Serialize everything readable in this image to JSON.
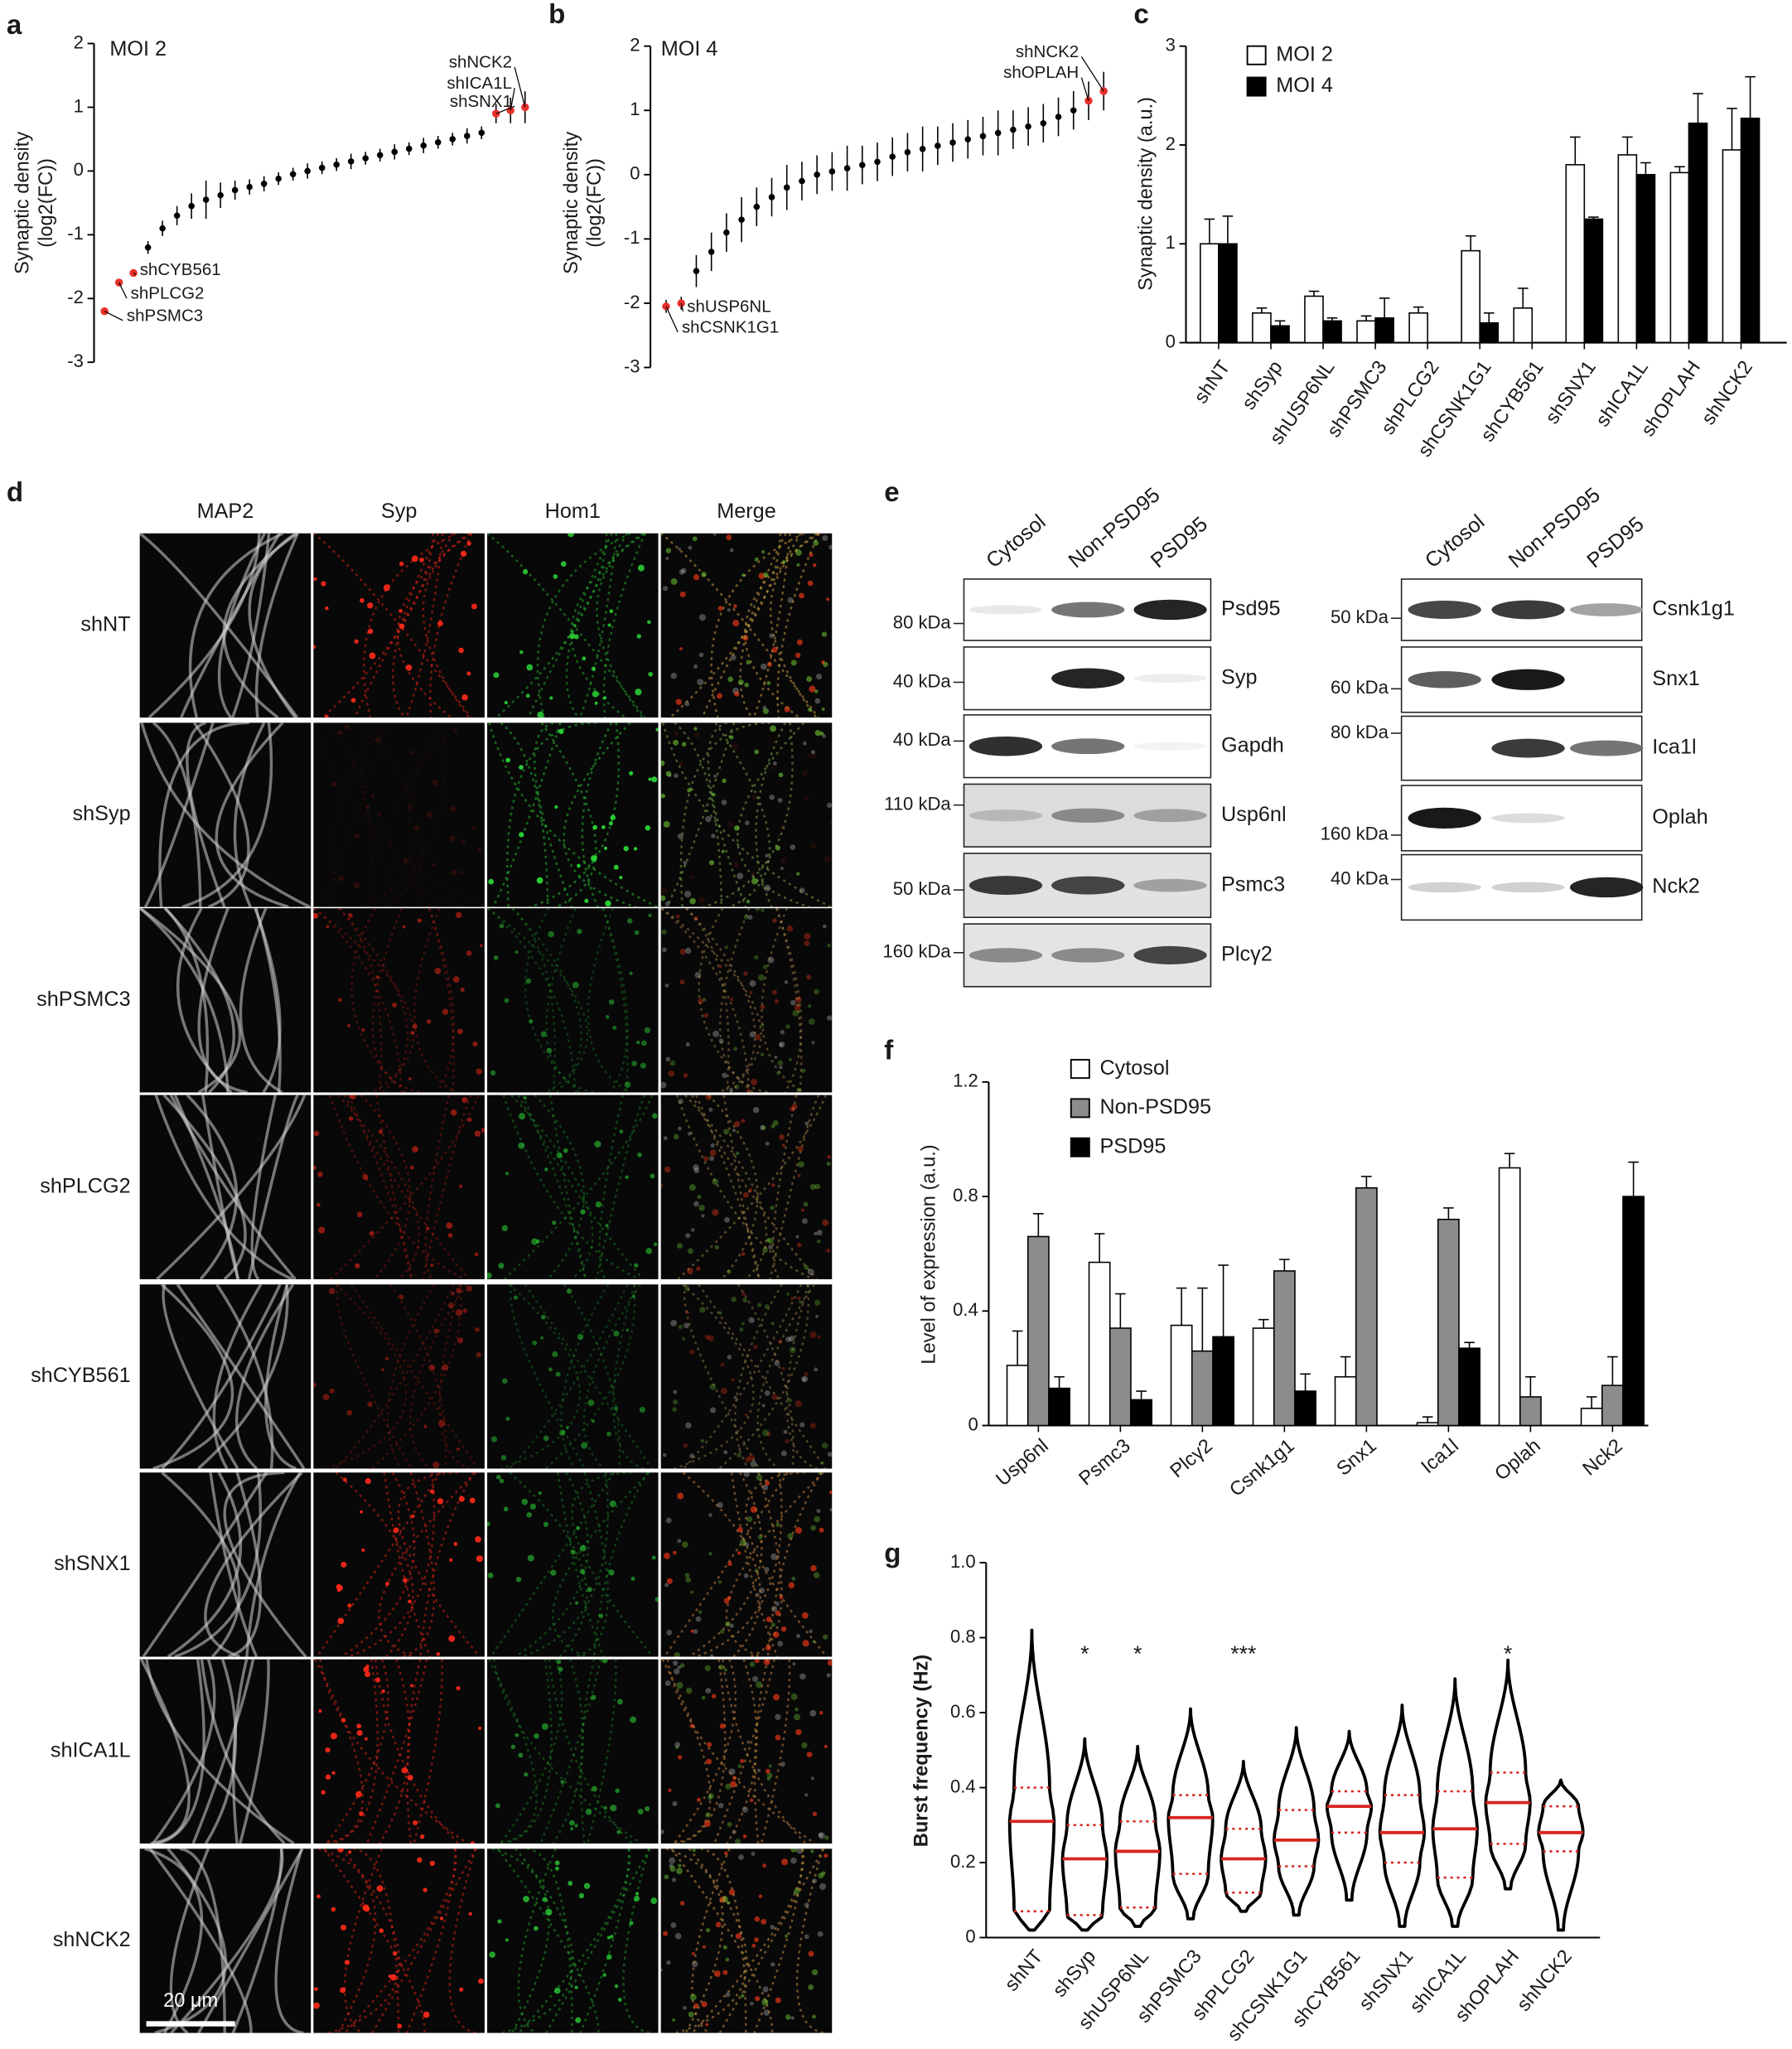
{
  "chart_data": [
    {
      "type": "errorbar",
      "panel_label": "a",
      "title": "MOI 2",
      "y_label": [
        "Synaptic density",
        "(log2(FC))"
      ],
      "ylim": [
        -3,
        2
      ],
      "yticks": [
        -3,
        -2,
        -1,
        0,
        1,
        2
      ],
      "color": "#000000",
      "highlight_color": "#e8302a",
      "values": [
        -2.2,
        -1.75,
        -1.6,
        -1.2,
        -0.9,
        -0.7,
        -0.55,
        -0.45,
        -0.38,
        -0.3,
        -0.25,
        -0.2,
        -0.12,
        -0.05,
        0,
        0.05,
        0.1,
        0.15,
        0.2,
        0.25,
        0.3,
        0.35,
        0.4,
        0.45,
        0.5,
        0.55,
        0.6,
        0.9,
        0.95,
        1.0
      ],
      "errors": [
        0.03,
        0.05,
        0.05,
        0.1,
        0.12,
        0.15,
        0.2,
        0.3,
        0.2,
        0.15,
        0.12,
        0.12,
        0.1,
        0.1,
        0.12,
        0.1,
        0.1,
        0.12,
        0.1,
        0.1,
        0.12,
        0.1,
        0.12,
        0.1,
        0.1,
        0.12,
        0.1,
        0.15,
        0.2,
        0.25
      ],
      "annotations": [
        {
          "text": "shNCK2",
          "point": 29
        },
        {
          "text": "shICA1L",
          "point": 28
        },
        {
          "text": "shSNX1",
          "point": 27
        },
        {
          "text": "shCYB561",
          "point": 2
        },
        {
          "text": "shPLCG2",
          "point": 1
        },
        {
          "text": "shPSMC3",
          "point": 0
        }
      ]
    },
    {
      "type": "errorbar",
      "panel_label": "b",
      "title": "MOI 4",
      "y_label": [
        "Synaptic density",
        "(log2(FC))"
      ],
      "ylim": [
        -3,
        2
      ],
      "yticks": [
        -3,
        -2,
        -1,
        0,
        1,
        2
      ],
      "color": "#000000",
      "highlight_color": "#e8302a",
      "values": [
        -2.05,
        -2.0,
        -1.5,
        -1.2,
        -0.9,
        -0.7,
        -0.5,
        -0.35,
        -0.2,
        -0.1,
        0,
        0.05,
        0.1,
        0.15,
        0.2,
        0.28,
        0.35,
        0.4,
        0.45,
        0.5,
        0.55,
        0.6,
        0.65,
        0.7,
        0.75,
        0.8,
        0.9,
        1.0,
        1.15,
        1.3
      ],
      "errors": [
        0.1,
        0.1,
        0.25,
        0.3,
        0.3,
        0.35,
        0.3,
        0.3,
        0.35,
        0.3,
        0.3,
        0.3,
        0.35,
        0.3,
        0.3,
        0.3,
        0.3,
        0.35,
        0.3,
        0.3,
        0.3,
        0.3,
        0.35,
        0.3,
        0.3,
        0.3,
        0.3,
        0.3,
        0.3,
        0.3
      ],
      "annotations": [
        {
          "text": "shNCK2",
          "point": 29
        },
        {
          "text": "shOPLAH",
          "point": 28
        },
        {
          "text": "shUSP6NL",
          "point": 1
        },
        {
          "text": "shCSNK1G1",
          "point": 0
        }
      ]
    },
    {
      "type": "bar",
      "panel_label": "c",
      "y_label": "Synaptic density (a.u.)",
      "ylim": [
        0,
        3
      ],
      "yticks": [
        0,
        1,
        2,
        3
      ],
      "categories": [
        "shNT",
        "shSyp",
        "shUSP6NL",
        "shPSMC3",
        "shPLCG2",
        "shCSNK1G1",
        "shCYB561",
        "shSNX1",
        "shICA1L",
        "shOPLAH",
        "shNCK2"
      ],
      "series": [
        {
          "name": "MOI 2",
          "color": "#ffffff",
          "values": [
            1.0,
            0.3,
            0.47,
            0.22,
            0.3,
            0.93,
            0.35,
            1.8,
            1.9,
            1.72,
            1.95
          ],
          "errors": [
            0.25,
            0.05,
            0.05,
            0.05,
            0.06,
            0.15,
            0.2,
            0.28,
            0.18,
            0.06,
            0.42
          ]
        },
        {
          "name": "MOI 4",
          "color": "#000000",
          "values": [
            1.0,
            0.17,
            0.22,
            0.25,
            null,
            0.2,
            null,
            1.25,
            1.7,
            2.22,
            2.27
          ],
          "errors": [
            0.28,
            0.05,
            0.03,
            0.2,
            null,
            0.1,
            null,
            0.02,
            0.12,
            0.3,
            0.42
          ]
        }
      ]
    },
    {
      "type": "bar",
      "panel_label": "f",
      "y_label": "Level of expression (a.u.)",
      "ylim": [
        0,
        1.2
      ],
      "yticks": [
        0,
        0.4,
        0.8,
        1.2
      ],
      "categories": [
        "Usp6nl",
        "Psmc3",
        "Plcγ2",
        "Csnk1g1",
        "Snx1",
        "Ica1l",
        "Oplah",
        "Nck2"
      ],
      "series": [
        {
          "name": "Cytosol",
          "color": "#ffffff",
          "values": [
            0.21,
            0.57,
            0.35,
            0.34,
            0.17,
            0.01,
            0.9,
            0.06
          ],
          "errors": [
            0.12,
            0.1,
            0.13,
            0.03,
            0.07,
            0.02,
            0.05,
            0.04
          ]
        },
        {
          "name": "Non-PSD95",
          "color": "#8c8c8c",
          "values": [
            0.66,
            0.34,
            0.26,
            0.54,
            0.83,
            0.72,
            0.1,
            0.14
          ],
          "errors": [
            0.08,
            0.12,
            0.22,
            0.04,
            0.04,
            0.04,
            0.07,
            0.1
          ]
        },
        {
          "name": "PSD95",
          "color": "#000000",
          "values": [
            0.13,
            0.09,
            0.31,
            0.12,
            0,
            0.27,
            0,
            0.8
          ],
          "errors": [
            0.04,
            0.03,
            0.25,
            0.06,
            0,
            0.02,
            0,
            0.12
          ]
        }
      ]
    },
    {
      "type": "violin",
      "panel_label": "g",
      "y_label": "Burst frequency (Hz)",
      "ylim": [
        0,
        1
      ],
      "yticks": [
        0,
        0.2,
        0.4,
        0.6,
        0.8,
        {
          "value": 1,
          "label": "1.0"
        }
      ],
      "categories": [
        "shNT",
        "shSyp",
        "shUSP6NL",
        "shPSMC3",
        "shPLCG2",
        "shCSNK1G1",
        "shCYB561",
        "shSNX1",
        "shICA1L",
        "shOPLAH",
        "shNCK2"
      ],
      "color": "#000000",
      "median_color": "#d7261e",
      "medians": [
        0.31,
        0.21,
        0.23,
        0.32,
        0.21,
        0.26,
        0.35,
        0.28,
        0.29,
        0.36,
        0.28
      ],
      "q1": [
        0.07,
        0.06,
        0.08,
        0.17,
        0.12,
        0.19,
        0.28,
        0.2,
        0.16,
        0.25,
        0.23
      ],
      "q3": [
        0.4,
        0.3,
        0.31,
        0.38,
        0.29,
        0.34,
        0.39,
        0.38,
        0.39,
        0.44,
        0.35
      ],
      "min": [
        0.02,
        0.02,
        0.03,
        0.05,
        0.07,
        0.06,
        0.1,
        0.03,
        0.03,
        0.13,
        0.02
      ],
      "max": [
        0.82,
        0.53,
        0.51,
        0.61,
        0.47,
        0.56,
        0.55,
        0.62,
        0.69,
        0.74,
        0.42
      ],
      "significance": [
        null,
        "*",
        "*",
        null,
        "***",
        null,
        null,
        null,
        null,
        "*",
        null
      ]
    }
  ],
  "image_grid": {
    "panel_label": "d",
    "columns": [
      "MAP2",
      "Syp",
      "Hom1",
      "Merge"
    ],
    "rows": [
      "shNT",
      "shSyp",
      "shPSMC3",
      "shPLCG2",
      "shCYB561",
      "shSNX1",
      "shICA1L",
      "shNCK2"
    ],
    "scale_bar": "20 μm"
  },
  "blot": {
    "panel_label": "e",
    "left": {
      "lanes": [
        "Cytosol",
        "Non-PSD95",
        "PSD95"
      ],
      "rows": [
        {
          "marker": "80 kDa",
          "protein": "Psd95"
        },
        {
          "marker": "40 kDa",
          "protein": "Syp"
        },
        {
          "marker": "40 kDa",
          "protein": "Gapdh"
        },
        {
          "marker": "110 kDa",
          "protein": "Usp6nl"
        },
        {
          "marker": "50 kDa",
          "protein": "Psmc3"
        },
        {
          "marker": "160 kDa",
          "protein": "Plcγ2"
        }
      ]
    },
    "right": {
      "lanes": [
        "Cytosol",
        "Non-PSD95",
        "PSD95"
      ],
      "rows": [
        {
          "marker": "50 kDa",
          "protein": "Csnk1g1"
        },
        {
          "marker": "60 kDa",
          "protein": "Snx1"
        },
        {
          "marker": "80 kDa",
          "protein": "Ica1l"
        },
        {
          "marker": "160 kDa",
          "protein": "Oplah"
        },
        {
          "marker": "40 kDa",
          "protein": "Nck2"
        }
      ]
    }
  }
}
